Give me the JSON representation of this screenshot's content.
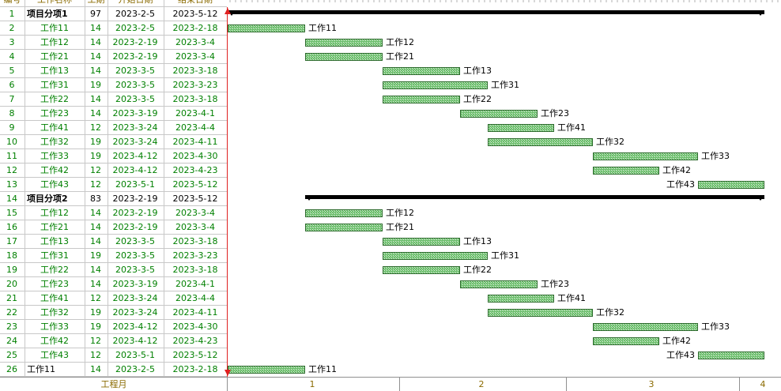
{
  "header": {
    "columns": [
      "编号",
      "工作名称",
      "工期",
      "开始日期",
      "结束日期"
    ]
  },
  "rows": [
    {
      "id": 1,
      "name": "项目分项1",
      "duration": 97,
      "start": "2023-2-5",
      "end": "2023-5-12",
      "summary": true
    },
    {
      "id": 2,
      "name": "工作11",
      "duration": 14,
      "start": "2023-2-5",
      "end": "2023-2-18"
    },
    {
      "id": 3,
      "name": "工作12",
      "duration": 14,
      "start": "2023-2-19",
      "end": "2023-3-4"
    },
    {
      "id": 4,
      "name": "工作21",
      "duration": 14,
      "start": "2023-2-19",
      "end": "2023-3-4"
    },
    {
      "id": 5,
      "name": "工作13",
      "duration": 14,
      "start": "2023-3-5",
      "end": "2023-3-18"
    },
    {
      "id": 6,
      "name": "工作31",
      "duration": 19,
      "start": "2023-3-5",
      "end": "2023-3-23"
    },
    {
      "id": 7,
      "name": "工作22",
      "duration": 14,
      "start": "2023-3-5",
      "end": "2023-3-18"
    },
    {
      "id": 8,
      "name": "工作23",
      "duration": 14,
      "start": "2023-3-19",
      "end": "2023-4-1"
    },
    {
      "id": 9,
      "name": "工作41",
      "duration": 12,
      "start": "2023-3-24",
      "end": "2023-4-4"
    },
    {
      "id": 10,
      "name": "工作32",
      "duration": 19,
      "start": "2023-3-24",
      "end": "2023-4-11"
    },
    {
      "id": 11,
      "name": "工作33",
      "duration": 19,
      "start": "2023-4-12",
      "end": "2023-4-30"
    },
    {
      "id": 12,
      "name": "工作42",
      "duration": 12,
      "start": "2023-4-12",
      "end": "2023-4-23"
    },
    {
      "id": 13,
      "name": "工作43",
      "duration": 12,
      "start": "2023-5-1",
      "end": "2023-5-12"
    },
    {
      "id": 14,
      "name": "项目分项2",
      "duration": 83,
      "start": "2023-2-19",
      "end": "2023-5-12",
      "summary": true
    },
    {
      "id": 15,
      "name": "工作12",
      "duration": 14,
      "start": "2023-2-19",
      "end": "2023-3-4"
    },
    {
      "id": 16,
      "name": "工作21",
      "duration": 14,
      "start": "2023-2-19",
      "end": "2023-3-4"
    },
    {
      "id": 17,
      "name": "工作13",
      "duration": 14,
      "start": "2023-3-5",
      "end": "2023-3-18"
    },
    {
      "id": 18,
      "name": "工作31",
      "duration": 19,
      "start": "2023-3-5",
      "end": "2023-3-23"
    },
    {
      "id": 19,
      "name": "工作22",
      "duration": 14,
      "start": "2023-3-5",
      "end": "2023-3-18"
    },
    {
      "id": 20,
      "name": "工作23",
      "duration": 14,
      "start": "2023-3-19",
      "end": "2023-4-1"
    },
    {
      "id": 21,
      "name": "工作41",
      "duration": 12,
      "start": "2023-3-24",
      "end": "2023-4-4"
    },
    {
      "id": 22,
      "name": "工作32",
      "duration": 19,
      "start": "2023-3-24",
      "end": "2023-4-11"
    },
    {
      "id": 23,
      "name": "工作33",
      "duration": 19,
      "start": "2023-4-12",
      "end": "2023-4-30"
    },
    {
      "id": 24,
      "name": "工作42",
      "duration": 12,
      "start": "2023-4-12",
      "end": "2023-4-23"
    },
    {
      "id": 25,
      "name": "工作43",
      "duration": 12,
      "start": "2023-5-1",
      "end": "2023-5-12"
    },
    {
      "id": 26,
      "name": "工作11",
      "duration": 14,
      "start": "2023-2-5",
      "end": "2023-2-18"
    }
  ],
  "footer": {
    "label": "工程月",
    "months": [
      "1",
      "2",
      "3",
      "4"
    ]
  }
}
